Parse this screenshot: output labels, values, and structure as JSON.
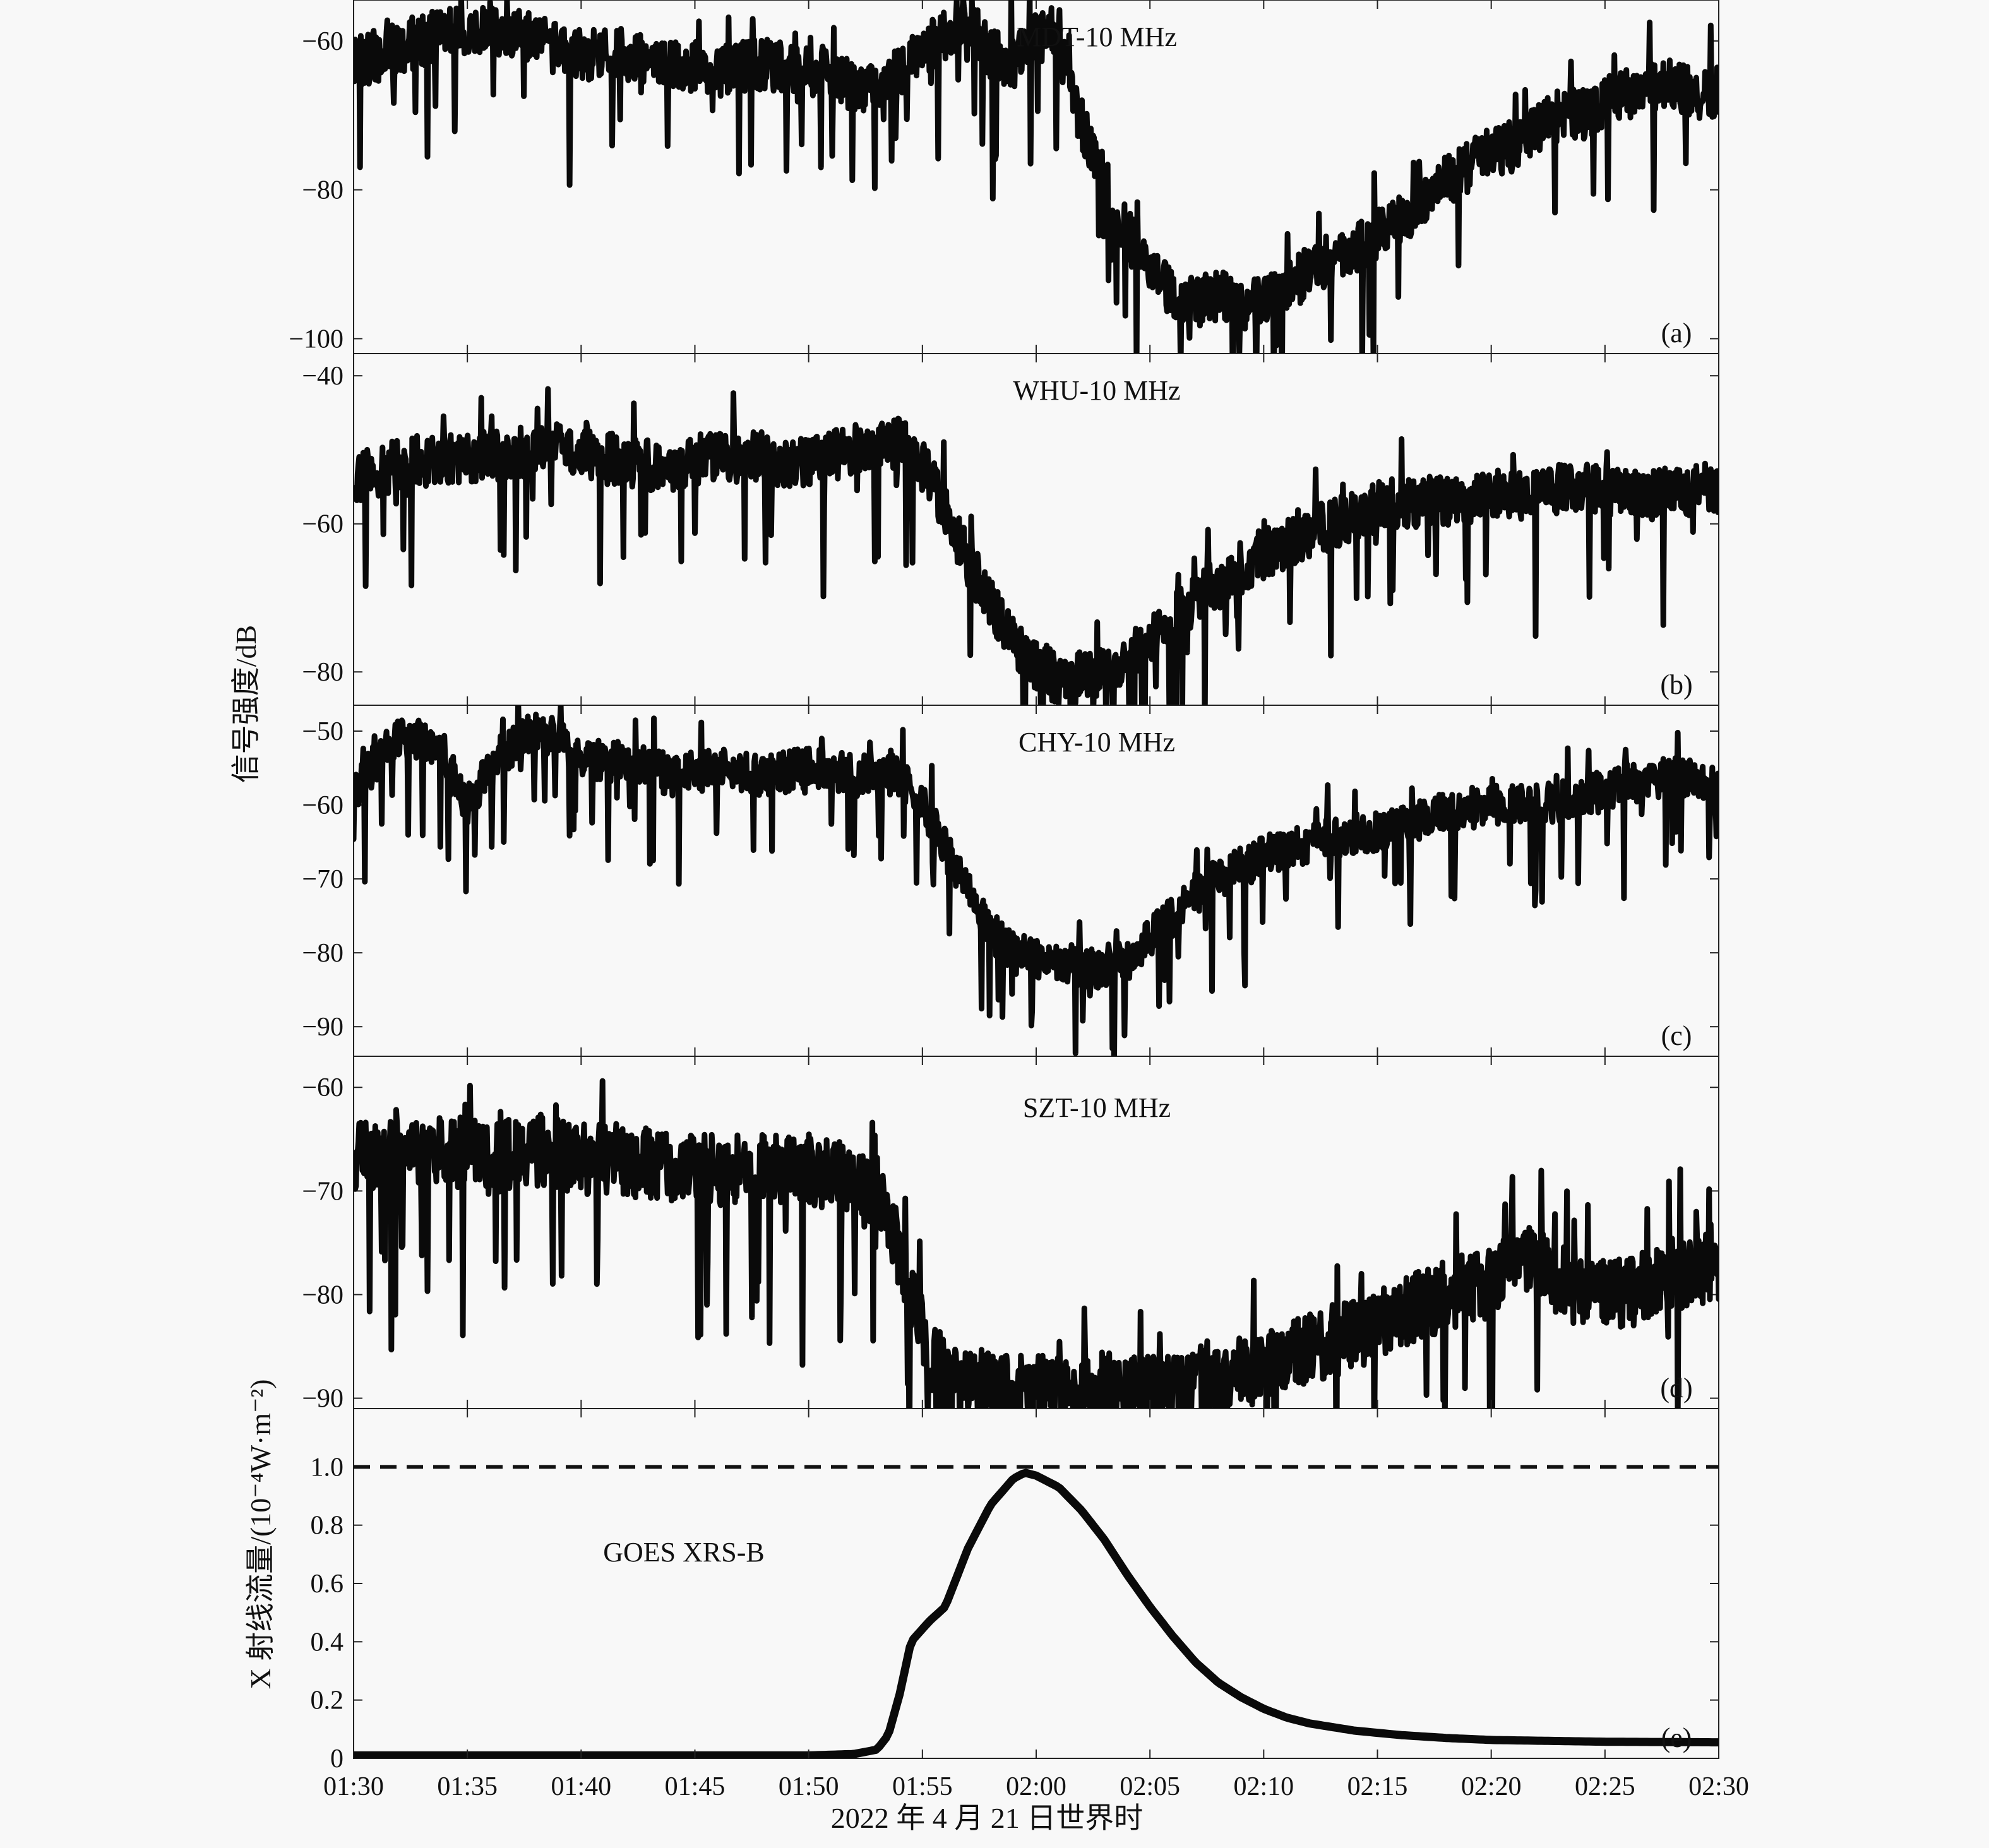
{
  "chart_data": {
    "type": "line",
    "shared_x": {
      "ticks": [
        "01:30",
        "01:35",
        "01:40",
        "01:45",
        "01:50",
        "01:55",
        "02:00",
        "02:05",
        "02:10",
        "02:15",
        "02:20",
        "02:25",
        "02:30"
      ],
      "range_minutes": [
        0,
        60
      ],
      "label": "2022 年 4 月 21 日世界时"
    },
    "shared_ylabel": "信号强度/dB",
    "panels": [
      {
        "id": "a",
        "letter": "(a)",
        "title": "MDT-10 MHz",
        "ylim": [
          -102,
          -54.5
        ],
        "yticks": [
          -60,
          -80,
          -100
        ],
        "ytick_labels": [
          "−60",
          "−80",
          "−100"
        ],
        "noise": 5,
        "keypoints": [
          [
            0,
            -63
          ],
          [
            2,
            -61
          ],
          [
            4,
            -59
          ],
          [
            6,
            -58
          ],
          [
            8,
            -60
          ],
          [
            10,
            -62
          ],
          [
            12,
            -62
          ],
          [
            14,
            -63
          ],
          [
            16,
            -64
          ],
          [
            18,
            -63
          ],
          [
            20,
            -64
          ],
          [
            22,
            -66
          ],
          [
            23,
            -67
          ],
          [
            24,
            -64
          ],
          [
            26,
            -59
          ],
          [
            27,
            -57
          ],
          [
            28,
            -62
          ],
          [
            29,
            -63
          ],
          [
            30,
            -59
          ],
          [
            31,
            -61
          ],
          [
            32,
            -71
          ],
          [
            33,
            -79
          ],
          [
            34,
            -86
          ],
          [
            35,
            -91
          ],
          [
            36,
            -94
          ],
          [
            37,
            -95
          ],
          [
            38,
            -94
          ],
          [
            39,
            -96
          ],
          [
            40,
            -95
          ],
          [
            41,
            -93
          ],
          [
            42,
            -91
          ],
          [
            43,
            -89
          ],
          [
            44,
            -88
          ],
          [
            45,
            -86
          ],
          [
            46,
            -84
          ],
          [
            47,
            -82
          ],
          [
            48,
            -79
          ],
          [
            49,
            -77
          ],
          [
            50,
            -75
          ],
          [
            51,
            -74
          ],
          [
            52,
            -72
          ],
          [
            53,
            -70
          ],
          [
            54,
            -70
          ],
          [
            55,
            -68
          ],
          [
            56,
            -67
          ],
          [
            57,
            -66
          ],
          [
            58,
            -66
          ],
          [
            59,
            -67
          ],
          [
            60,
            -67
          ]
        ]
      },
      {
        "id": "b",
        "letter": "(b)",
        "title": "WHU-10 MHz",
        "ylim": [
          -84.5,
          -37
        ],
        "yticks": [
          -40,
          -60,
          -80
        ],
        "ytick_labels": [
          "−40",
          "−60",
          "−80"
        ],
        "noise": 5,
        "keypoints": [
          [
            0,
            -54
          ],
          [
            2,
            -52
          ],
          [
            4,
            -51
          ],
          [
            6,
            -51
          ],
          [
            8,
            -50
          ],
          [
            10,
            -50
          ],
          [
            12,
            -52
          ],
          [
            14,
            -52
          ],
          [
            16,
            -51
          ],
          [
            18,
            -51
          ],
          [
            20,
            -52
          ],
          [
            22,
            -50
          ],
          [
            24,
            -49
          ],
          [
            25,
            -52
          ],
          [
            26,
            -58
          ],
          [
            27,
            -65
          ],
          [
            28,
            -71
          ],
          [
            29,
            -76
          ],
          [
            30,
            -79
          ],
          [
            31,
            -81
          ],
          [
            32,
            -81
          ],
          [
            33,
            -80
          ],
          [
            34,
            -78
          ],
          [
            35,
            -76
          ],
          [
            36,
            -73
          ],
          [
            37,
            -70
          ],
          [
            38,
            -68
          ],
          [
            39,
            -66
          ],
          [
            40,
            -64
          ],
          [
            42,
            -61
          ],
          [
            44,
            -59
          ],
          [
            46,
            -57
          ],
          [
            48,
            -57
          ],
          [
            50,
            -56
          ],
          [
            52,
            -56
          ],
          [
            54,
            -55
          ],
          [
            56,
            -56
          ],
          [
            58,
            -56
          ],
          [
            60,
            -55
          ]
        ]
      },
      {
        "id": "c",
        "letter": "(c)",
        "title": "CHY-10 MHz",
        "ylim": [
          -94,
          -46.5
        ],
        "yticks": [
          -50,
          -60,
          -70,
          -80,
          -90
        ],
        "ytick_labels": [
          "−50",
          "−60",
          "−70",
          "−80",
          "−90"
        ],
        "noise": 4,
        "keypoints": [
          [
            0,
            -58
          ],
          [
            1,
            -54
          ],
          [
            2,
            -51
          ],
          [
            3,
            -51
          ],
          [
            4,
            -53
          ],
          [
            5,
            -60
          ],
          [
            6,
            -55
          ],
          [
            7,
            -52
          ],
          [
            8,
            -50
          ],
          [
            9,
            -51
          ],
          [
            10,
            -54
          ],
          [
            12,
            -54
          ],
          [
            14,
            -56
          ],
          [
            16,
            -55
          ],
          [
            18,
            -56
          ],
          [
            20,
            -55
          ],
          [
            22,
            -56
          ],
          [
            24,
            -56
          ],
          [
            25,
            -60
          ],
          [
            26,
            -66
          ],
          [
            27,
            -72
          ],
          [
            28,
            -77
          ],
          [
            29,
            -80
          ],
          [
            30,
            -81
          ],
          [
            31,
            -81
          ],
          [
            32,
            -82
          ],
          [
            33,
            -82
          ],
          [
            34,
            -81
          ],
          [
            35,
            -78
          ],
          [
            36,
            -75
          ],
          [
            37,
            -72
          ],
          [
            38,
            -70
          ],
          [
            40,
            -67
          ],
          [
            42,
            -65
          ],
          [
            44,
            -64
          ],
          [
            46,
            -63
          ],
          [
            48,
            -61
          ],
          [
            50,
            -60
          ],
          [
            52,
            -60
          ],
          [
            54,
            -59
          ],
          [
            56,
            -57
          ],
          [
            58,
            -56
          ],
          [
            60,
            -58
          ]
        ]
      },
      {
        "id": "d",
        "letter": "(d)",
        "title": "SZT-10 MHz",
        "ylim": [
          -91,
          -57
        ],
        "yticks": [
          -60,
          -70,
          -80,
          -90
        ],
        "ytick_labels": [
          "−60",
          "−70",
          "−80",
          "−90"
        ],
        "noise": 5,
        "keypoints": [
          [
            0,
            -67
          ],
          [
            2,
            -66
          ],
          [
            4,
            -66
          ],
          [
            6,
            -67
          ],
          [
            8,
            -66
          ],
          [
            10,
            -67
          ],
          [
            12,
            -67
          ],
          [
            14,
            -68
          ],
          [
            16,
            -68
          ],
          [
            18,
            -68
          ],
          [
            20,
            -68
          ],
          [
            22,
            -69
          ],
          [
            23,
            -70
          ],
          [
            24,
            -76
          ],
          [
            25,
            -84
          ],
          [
            26,
            -88
          ],
          [
            28,
            -89
          ],
          [
            30,
            -89
          ],
          [
            32,
            -89
          ],
          [
            34,
            -89
          ],
          [
            36,
            -89
          ],
          [
            38,
            -88
          ],
          [
            40,
            -87
          ],
          [
            42,
            -85
          ],
          [
            44,
            -84
          ],
          [
            46,
            -82
          ],
          [
            48,
            -80
          ],
          [
            50,
            -79
          ],
          [
            51,
            -76
          ],
          [
            52,
            -77
          ],
          [
            54,
            -80
          ],
          [
            56,
            -80
          ],
          [
            58,
            -78
          ],
          [
            60,
            -77
          ]
        ]
      },
      {
        "id": "e",
        "letter": "(e)",
        "title": "GOES XRS-B",
        "ylabel": "X 射线流量/(10⁻⁴W·m⁻²)",
        "ylim": [
          0,
          1.2
        ],
        "yticks": [
          0,
          0.2,
          0.4,
          0.6,
          0.8,
          1.0
        ],
        "ytick_labels": [
          "0",
          "0.2",
          "0.4",
          "0.6",
          "0.8",
          "1.0"
        ],
        "noise": 0,
        "threshold": 1.0,
        "keypoints": [
          [
            0,
            0.01
          ],
          [
            10,
            0.01
          ],
          [
            20,
            0.01
          ],
          [
            22,
            0.015
          ],
          [
            23,
            0.03
          ],
          [
            23.5,
            0.08
          ],
          [
            24,
            0.22
          ],
          [
            24.5,
            0.4
          ],
          [
            25.3,
            0.47
          ],
          [
            26,
            0.52
          ],
          [
            26.5,
            0.62
          ],
          [
            27,
            0.72
          ],
          [
            28,
            0.87
          ],
          [
            29,
            0.96
          ],
          [
            29.5,
            0.98
          ],
          [
            30,
            0.97
          ],
          [
            31,
            0.93
          ],
          [
            32,
            0.85
          ],
          [
            33,
            0.75
          ],
          [
            34,
            0.63
          ],
          [
            35,
            0.52
          ],
          [
            36,
            0.42
          ],
          [
            37,
            0.33
          ],
          [
            38,
            0.26
          ],
          [
            39,
            0.21
          ],
          [
            40,
            0.17
          ],
          [
            41,
            0.14
          ],
          [
            42,
            0.12
          ],
          [
            44,
            0.095
          ],
          [
            46,
            0.08
          ],
          [
            48,
            0.07
          ],
          [
            50,
            0.063
          ],
          [
            55,
            0.057
          ],
          [
            60,
            0.055
          ]
        ]
      }
    ]
  }
}
